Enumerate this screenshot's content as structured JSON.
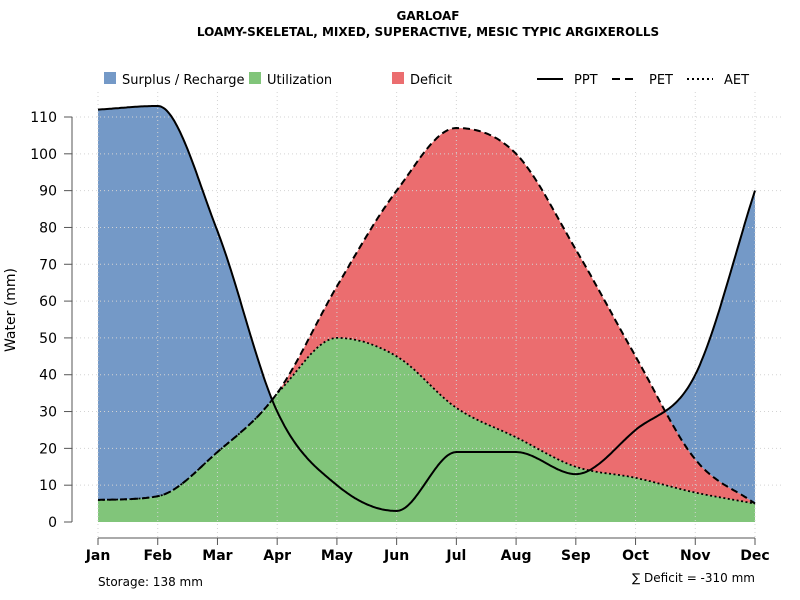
{
  "chart_data": {
    "type": "area",
    "title": "GARLOAF",
    "subtitle": "LOAMY-SKELETAL, MIXED, SUPERACTIVE, MESIC TYPIC ARGIXEROLLS",
    "xlabel": "",
    "ylabel": "Water (mm)",
    "ylim": [
      0,
      115
    ],
    "yticks": [
      0,
      10,
      20,
      30,
      40,
      50,
      60,
      70,
      80,
      90,
      100,
      110
    ],
    "grid": true,
    "categories": [
      "Jan",
      "Feb",
      "Mar",
      "Apr",
      "May",
      "Jun",
      "Jul",
      "Aug",
      "Sep",
      "Oct",
      "Nov",
      "Dec"
    ],
    "series": [
      {
        "name": "PPT",
        "style": "solid",
        "values": [
          112,
          113,
          79,
          30,
          10,
          3,
          19,
          19,
          13,
          25,
          40,
          90
        ]
      },
      {
        "name": "PET",
        "style": "dashed",
        "values": [
          6,
          7,
          19,
          35,
          64,
          90,
          107,
          100,
          74,
          45,
          17,
          5
        ]
      },
      {
        "name": "AET",
        "style": "dotted",
        "values": [
          6,
          7,
          19,
          35,
          50,
          45,
          31,
          23,
          15,
          12,
          8,
          5
        ]
      }
    ],
    "legend": [
      {
        "label": "Surplus / Recharge",
        "color": "#7499C7"
      },
      {
        "label": "Utilization",
        "color": "#81C57A"
      },
      {
        "label": "Deficit",
        "color": "#EB6D6F"
      },
      {
        "label": "PPT",
        "style": "solid"
      },
      {
        "label": "PET",
        "style": "dashed"
      },
      {
        "label": "AET",
        "style": "dotted"
      }
    ],
    "legend_position": "top",
    "annotations": {
      "storage": "Storage: 138 mm",
      "deficit": "∑ Deficit = -310 mm"
    },
    "colors": {
      "surplus": "#7499C7",
      "utilization": "#81C57A",
      "deficit": "#EB6D6F"
    }
  }
}
